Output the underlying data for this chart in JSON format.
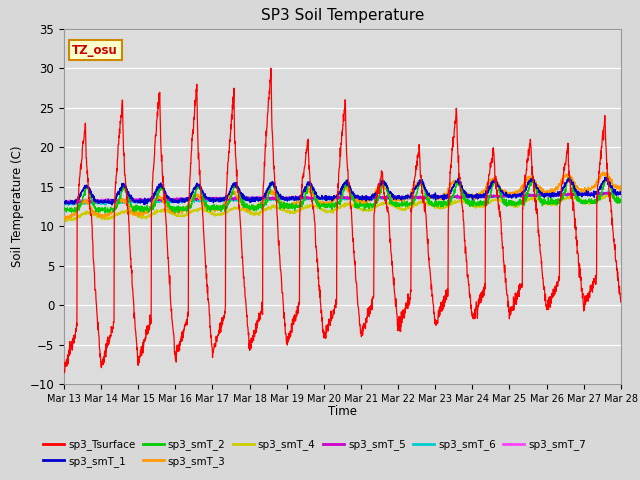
{
  "title": "SP3 Soil Temperature",
  "xlabel": "Time",
  "ylabel": "Soil Temperature (C)",
  "ylim": [
    -10,
    35
  ],
  "background_color": "#d8d8d8",
  "plot_bg_color": "#dcdcdc",
  "tz_label": "TZ_osu",
  "tz_color": "#cc0000",
  "tz_bg": "#ffffcc",
  "tz_border": "#cc8800",
  "x_tick_labels": [
    "Mar 13",
    "Mar 14",
    "Mar 15",
    "Mar 16",
    "Mar 17",
    "Mar 18",
    "Mar 19",
    "Mar 20",
    "Mar 21",
    "Mar 22",
    "Mar 23",
    "Mar 24",
    "Mar 25",
    "Mar 26",
    "Mar 27",
    "Mar 28"
  ],
  "series_colors": {
    "sp3_Tsurface": "#ff0000",
    "sp3_smT_1": "#0000cc",
    "sp3_smT_2": "#00cc00",
    "sp3_smT_3": "#ff9900",
    "sp3_smT_4": "#cccc00",
    "sp3_smT_5": "#cc00cc",
    "sp3_smT_6": "#00cccc",
    "sp3_smT_7": "#ff44ff"
  },
  "yticks": [
    -10,
    -5,
    0,
    5,
    10,
    15,
    20,
    25,
    30,
    35
  ],
  "num_points_per_day": 144,
  "num_days": 15
}
